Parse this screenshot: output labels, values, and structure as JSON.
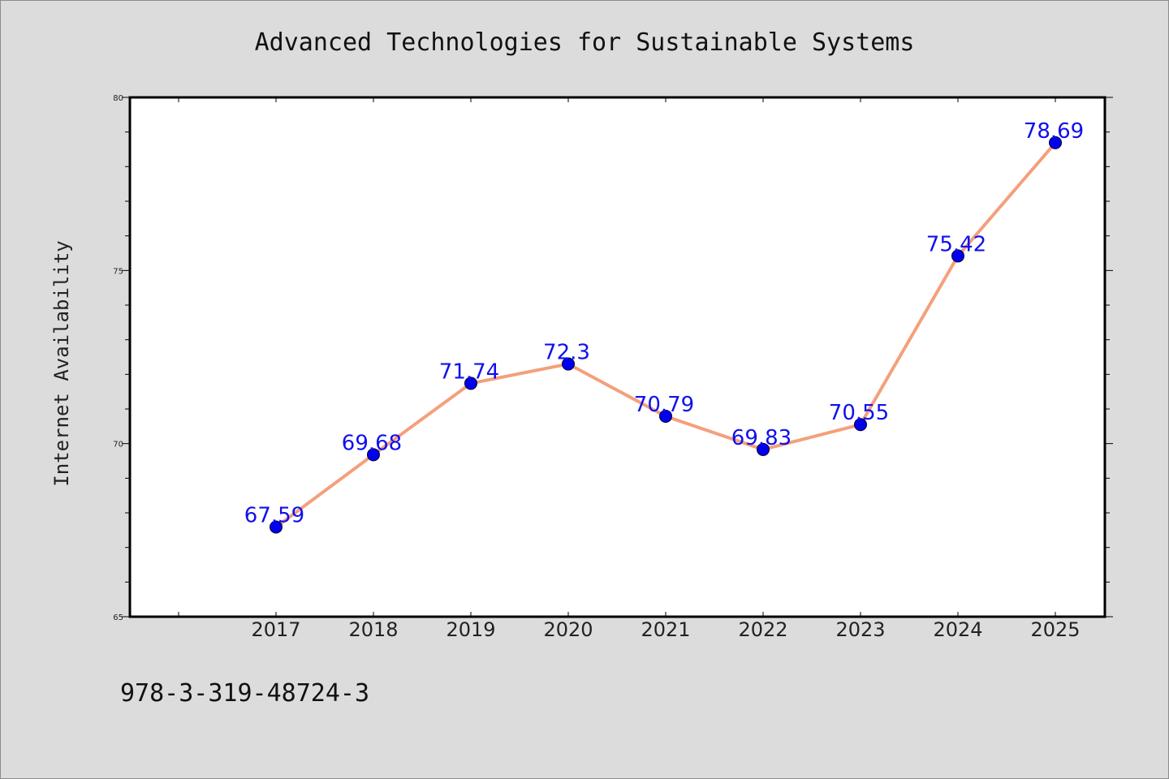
{
  "chart_data": {
    "type": "line",
    "title": "Advanced Technologies for Sustainable Systems",
    "xlabel": "",
    "ylabel": "Internet Availability",
    "categories": [
      "2017",
      "2018",
      "2019",
      "2020",
      "2021",
      "2022",
      "2023",
      "2024",
      "2025"
    ],
    "series": [
      {
        "values": [
          67.59,
          69.68,
          71.74,
          72.3,
          70.79,
          69.83,
          70.55,
          75.42,
          78.69
        ],
        "data_labels": [
          "67.59",
          "69.68",
          "71.74",
          "72.3",
          "70.79",
          "69.83",
          "70.55",
          "75.42",
          "78.69"
        ]
      }
    ],
    "ylim": [
      65,
      80
    ],
    "yticks": [
      "65",
      "70",
      "75",
      "80"
    ],
    "grid": false,
    "line_color": "#f4a07c",
    "marker_color": "#0000ee",
    "label_color": "#1010ee"
  },
  "footer": {
    "isbn": "978-3-319-48724-3"
  }
}
